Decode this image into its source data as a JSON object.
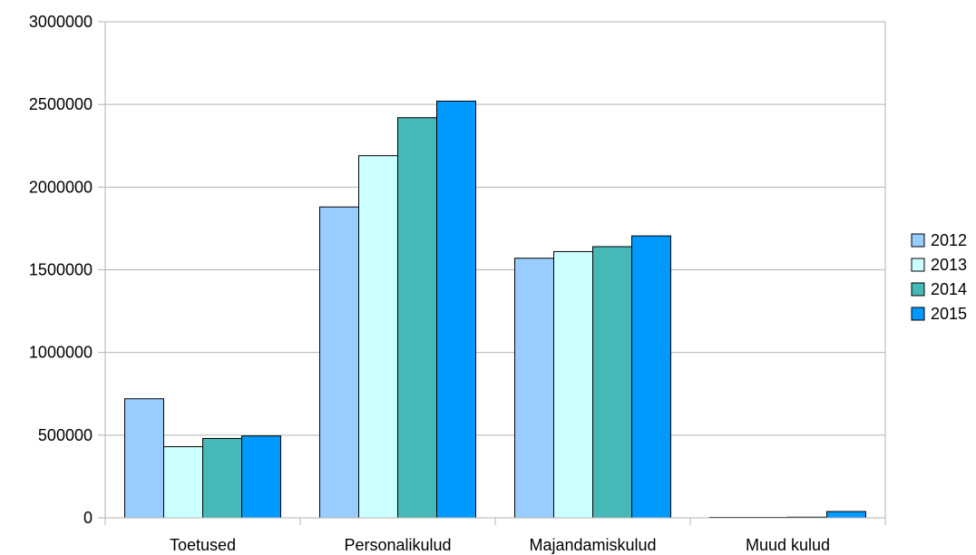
{
  "chart_data": {
    "type": "bar",
    "title": "",
    "xlabel": "",
    "ylabel": "",
    "categories": [
      "Toetused",
      "Personalikulud",
      "Majandamiskulud",
      "Muud kulud"
    ],
    "series": [
      {
        "name": "2012",
        "color": "#99ccff",
        "values": [
          720000,
          1880000,
          1570000,
          2000
        ]
      },
      {
        "name": "2013",
        "color": "#ccffff",
        "values": [
          430000,
          2190000,
          1610000,
          2000
        ]
      },
      {
        "name": "2014",
        "color": "#46b8b8",
        "values": [
          480000,
          2420000,
          1640000,
          4000
        ]
      },
      {
        "name": "2015",
        "color": "#0099ff",
        "values": [
          495000,
          2520000,
          1705000,
          38000
        ]
      }
    ],
    "ylim": [
      0,
      3000000
    ],
    "yticks": [
      "0",
      "500000",
      "1000000",
      "1500000",
      "2000000",
      "2500000",
      "3000000"
    ],
    "grid": true,
    "legend_position": "right"
  }
}
